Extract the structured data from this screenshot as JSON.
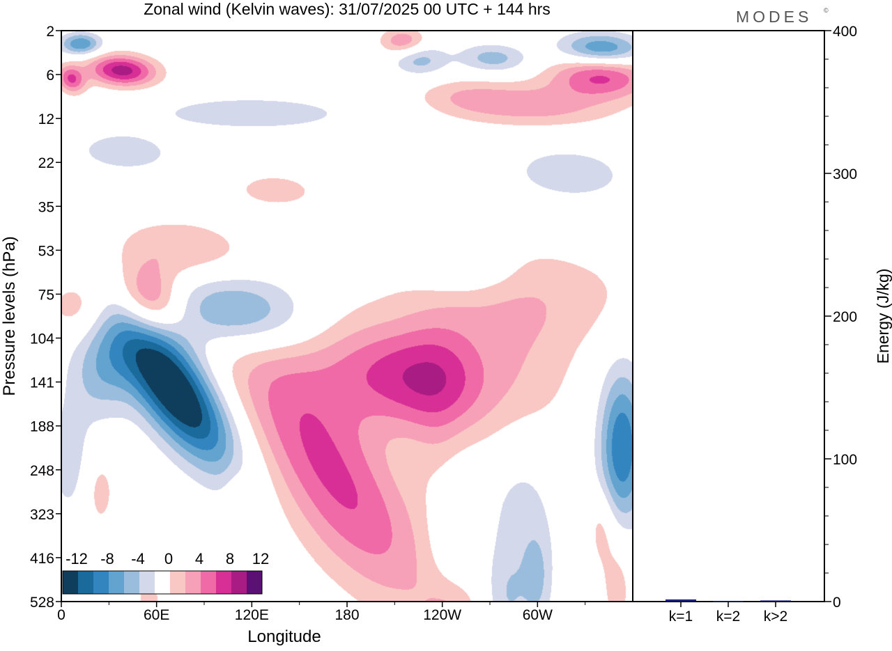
{
  "title": "Zonal wind (Kelvin waves):  31/07/2025  00 UTC  + 144 hrs",
  "brand": {
    "name": "MODES",
    "mark": "©"
  },
  "chart_data": [
    {
      "type": "heatmap",
      "title": "Zonal wind (Kelvin waves):  31/07/2025  00 UTC  + 144 hrs",
      "xlabel": "Longitude",
      "ylabel": "Pressure levels (hPa)",
      "x_range": [
        0,
        360
      ],
      "x_tick_values": [
        0,
        60,
        120,
        180,
        240,
        300
      ],
      "x_ticks": [
        "0",
        "60E",
        "120E",
        "180",
        "120W",
        "60W"
      ],
      "y_ticks": [
        "2",
        "6",
        "12",
        "22",
        "35",
        "53",
        "75",
        "104",
        "141",
        "188",
        "248",
        "323",
        "416",
        "528"
      ],
      "colorbar": {
        "labels": [
          "-12",
          "-8",
          "-4",
          "0",
          "4",
          "8",
          "12"
        ],
        "levels": [
          -14,
          -12,
          -10,
          -8,
          -6,
          -4,
          -2,
          2,
          4,
          6,
          8,
          10,
          12,
          14
        ],
        "colors": [
          "#0f3d5c",
          "#1b6a9c",
          "#3385bf",
          "#62a3cf",
          "#9bbddd",
          "#d3d8ea",
          "#ffffff",
          "#f9c8c4",
          "#f7a1b9",
          "#ef6aa6",
          "#d82f96",
          "#a81c83",
          "#5a1173"
        ]
      },
      "features": [
        {
          "lon": 38,
          "lev": 3.6,
          "lon_width": 15,
          "lev_width": 1.0,
          "tilt": -0.045,
          "value": 11
        },
        {
          "lon": 6,
          "lev": 4.4,
          "lon_width": 6,
          "lev_width": 0.9,
          "tilt": -0.03,
          "value": 8
        },
        {
          "lon": 12,
          "lev": 1.2,
          "lon_width": 9,
          "lev_width": 0.7,
          "tilt": 0,
          "value": -8
        },
        {
          "lon": 215,
          "lev": 1.0,
          "lon_width": 10,
          "lev_width": 0.9,
          "tilt": 0,
          "value": 6
        },
        {
          "lon": 225,
          "lev": 2.6,
          "lon_width": 12,
          "lev_width": 1.0,
          "tilt": -0.02,
          "value": -5
        },
        {
          "lon": 272,
          "lev": 2.5,
          "lon_width": 15,
          "lev_width": 0.9,
          "tilt": -0.03,
          "value": -5
        },
        {
          "lon": 340,
          "lev": 1.6,
          "lon_width": 18,
          "lev_width": 1.0,
          "tilt": -0.03,
          "value": -8
        },
        {
          "lon": 340,
          "lev": 4.2,
          "lon_width": 22,
          "lev_width": 1.3,
          "tilt": -0.04,
          "value": 8
        },
        {
          "lon": 300,
          "lev": 6.8,
          "lon_width": 35,
          "lev_width": 1.4,
          "tilt": -0.03,
          "value": 5
        },
        {
          "lon": 255,
          "lev": 6.0,
          "lon_width": 22,
          "lev_width": 1.2,
          "tilt": -0.05,
          "value": 3
        },
        {
          "lon": 120,
          "lev": 7.5,
          "lon_width": 40,
          "lev_width": 1.0,
          "tilt": -0.03,
          "value": -4
        },
        {
          "lon": 40,
          "lev": 11.0,
          "lon_width": 25,
          "lev_width": 1.5,
          "tilt": -0.04,
          "value": -3
        },
        {
          "lon": 320,
          "lev": 13.0,
          "lon_width": 30,
          "lev_width": 2.0,
          "tilt": -0.04,
          "value": -3
        },
        {
          "lon": 135,
          "lev": 14.5,
          "lon_width": 20,
          "lev_width": 1.2,
          "tilt": -0.04,
          "value": 3
        },
        {
          "lon": 75,
          "lev": 20.0,
          "lon_width": 30,
          "lev_width": 2.0,
          "tilt": -0.05,
          "value": 3.5
        },
        {
          "lon": 55,
          "lev": 24.5,
          "lon_width": 14,
          "lev_width": 2.2,
          "tilt": -0.03,
          "value": 8
        },
        {
          "lon": 12,
          "lev": 25.0,
          "lon_width": 14,
          "lev_width": 2.0,
          "tilt": 0,
          "value": 4
        },
        {
          "lon": 255,
          "lev": 22.0,
          "lon_width": 22,
          "lev_width": 1.5,
          "tilt": 0,
          "value": -3
        },
        {
          "lon": 290,
          "lev": 24.0,
          "lon_width": 60,
          "lev_width": 3.5,
          "tilt": -0.03,
          "value": 3
        },
        {
          "lon": 70,
          "lev": 32.5,
          "lon_width": 18,
          "lev_width": 5.0,
          "tilt": -0.1,
          "value": -16
        },
        {
          "lon": 110,
          "lev": 25.5,
          "lon_width": 30,
          "lev_width": 2.5,
          "tilt": -0.06,
          "value": -8
        },
        {
          "lon": 25,
          "lev": 31.0,
          "lon_width": 14,
          "lev_width": 3.0,
          "tilt": 0,
          "value": -5
        },
        {
          "lon": 5,
          "lev": 39.0,
          "lon_width": 10,
          "lev_width": 4.0,
          "tilt": 0,
          "value": -3
        },
        {
          "lon": 160,
          "lev": 37.5,
          "lon_width": 28,
          "lev_width": 8.0,
          "tilt": -0.1,
          "value": 7
        },
        {
          "lon": 210,
          "lev": 31.5,
          "lon_width": 35,
          "lev_width": 3.5,
          "tilt": -0.06,
          "value": 8
        },
        {
          "lon": 240,
          "lev": 31.0,
          "lon_width": 20,
          "lev_width": 4.0,
          "tilt": 0,
          "value": 4
        },
        {
          "lon": 290,
          "lev": 31.0,
          "lon_width": 25,
          "lev_width": 5.0,
          "tilt": 0,
          "value": 3
        },
        {
          "lon": 190,
          "lev": 46.0,
          "lon_width": 30,
          "lev_width": 6.0,
          "tilt": -0.1,
          "value": 3
        },
        {
          "lon": 240,
          "lev": 40.0,
          "lon_width": 12,
          "lev_width": 4.0,
          "tilt": 0,
          "value": 2.5
        },
        {
          "lon": 245,
          "lev": 44.0,
          "lon_width": 12,
          "lev_width": 5.0,
          "tilt": 0,
          "value": -3
        },
        {
          "lon": 290,
          "lev": 45.0,
          "lon_width": 15,
          "lev_width": 6.0,
          "tilt": 0,
          "value": -3
        },
        {
          "lon": 353,
          "lev": 38.0,
          "lon_width": 10,
          "lev_width": 5.0,
          "tilt": 0,
          "value": -10
        },
        {
          "lon": 340,
          "lev": 45.0,
          "lon_width": 6,
          "lev_width": 2.5,
          "tilt": 0,
          "value": 3
        },
        {
          "lon": 24,
          "lev": 42.0,
          "lon_width": 7,
          "lev_width": 2.5,
          "tilt": 0,
          "value": 3
        },
        {
          "lon": 110,
          "lev": 44.0,
          "lon_width": 6,
          "lev_width": 3.0,
          "tilt": 0,
          "value": 2.5
        },
        {
          "lon": 245,
          "lev": 54.5,
          "lon_width": 14,
          "lev_width": 3.0,
          "tilt": 0,
          "value": 4
        },
        {
          "lon": 280,
          "lev": 52.0,
          "lon_width": 10,
          "lev_width": 3.0,
          "tilt": 0,
          "value": -3
        },
        {
          "lon": 300,
          "lev": 50.0,
          "lon_width": 6,
          "lev_width": 3.0,
          "tilt": 0,
          "value": -3
        },
        {
          "lon": 350,
          "lev": 50.0,
          "lon_width": 8,
          "lev_width": 4.0,
          "tilt": 0,
          "value": 3
        },
        {
          "lon": 55,
          "lev": 52.0,
          "lon_width": 6,
          "lev_width": 2.0,
          "tilt": 0,
          "value": 3
        }
      ]
    },
    {
      "type": "bar",
      "categories": [
        "k=1",
        "k=2",
        "k>2"
      ],
      "values": [
        1.5,
        0.5,
        0.8
      ],
      "ylabel": "Energy (J/kg)",
      "ylim": [
        0,
        400
      ],
      "y_ticks": [
        "0",
        "100",
        "200",
        "300",
        "400"
      ],
      "bar_color": "#1a1f7a"
    }
  ]
}
